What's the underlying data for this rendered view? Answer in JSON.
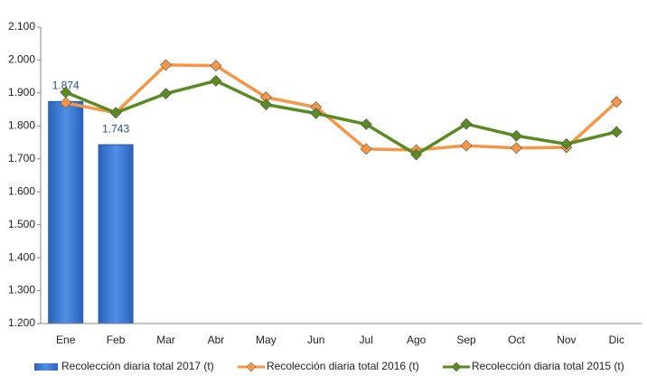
{
  "chart_data": {
    "type": "bar",
    "categories": [
      "Ene",
      "Feb",
      "Mar",
      "Abr",
      "May",
      "Jun",
      "Jul",
      "Ago",
      "Sep",
      "Oct",
      "Nov",
      "Dic"
    ],
    "series": [
      {
        "name": "Recolección diaria total 2017 (t)",
        "type": "bar",
        "color": "#3a7bd5",
        "values": [
          1874,
          1743,
          null,
          null,
          null,
          null,
          null,
          null,
          null,
          null,
          null,
          null
        ],
        "value_labels": [
          "1.874",
          "1.743",
          null,
          null,
          null,
          null,
          null,
          null,
          null,
          null,
          null,
          null
        ]
      },
      {
        "name": "Recolección diaria total 2016 (t)",
        "type": "line",
        "color": "#f79646",
        "values": [
          1870,
          1840,
          1985,
          1983,
          1887,
          1857,
          1730,
          1727,
          1740,
          1733,
          1735,
          1873
        ]
      },
      {
        "name": "Recolección diaria total 2015 (t)",
        "type": "line",
        "color": "#5a8a22",
        "values": [
          1902,
          1840,
          1898,
          1937,
          1865,
          1838,
          1805,
          1713,
          1806,
          1770,
          1745,
          1782
        ]
      }
    ],
    "ylim": [
      1200,
      2100
    ],
    "yticks": [
      {
        "value": 1200,
        "label": "1.200"
      },
      {
        "value": 1300,
        "label": "1.300"
      },
      {
        "value": 1400,
        "label": "1.400"
      },
      {
        "value": 1500,
        "label": "1.500"
      },
      {
        "value": 1600,
        "label": "1.600"
      },
      {
        "value": 1700,
        "label": "1.700"
      },
      {
        "value": 1800,
        "label": "1.800"
      },
      {
        "value": 1900,
        "label": "1.900"
      },
      {
        "value": 2000,
        "label": "2.000"
      },
      {
        "value": 2100,
        "label": "2.100"
      }
    ],
    "grid": false,
    "legend": "bottom"
  }
}
